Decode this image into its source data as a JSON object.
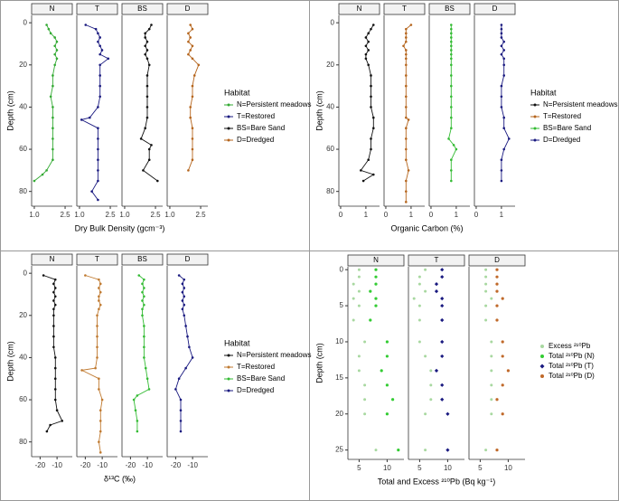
{
  "chart_data": [
    {
      "type": "line",
      "facets": [
        "N",
        "T",
        "BS",
        "D"
      ],
      "xlabel": "Dry Bulk Density (gcm⁻³)",
      "ylabel": "Depth (cm)",
      "xlim": [
        0.87,
        2.85
      ],
      "xticks": [
        {
          "value": 1,
          "label": "1.0"
        },
        {
          "value": 2.5,
          "label": "2.5"
        }
      ],
      "ylim": [
        -3.5,
        87
      ],
      "yticks": [
        0,
        20,
        40,
        60,
        80
      ],
      "yreverse": true,
      "legend_title": "Habitat",
      "series": [
        {
          "name": "N=Persistent meadows",
          "color": "#33aa33",
          "y": [
            1,
            3,
            5,
            7,
            9,
            11,
            13,
            15,
            17,
            20,
            25,
            30,
            35,
            40,
            45,
            50,
            55,
            60,
            65,
            70,
            72,
            75
          ],
          "x": [
            1.6,
            1.7,
            1.8,
            2.0,
            2.1,
            2.0,
            2.1,
            2.0,
            2.1,
            2.0,
            1.9,
            1.9,
            1.8,
            1.9,
            1.9,
            1.9,
            1.9,
            1.9,
            1.9,
            1.6,
            1.4,
            1.0
          ]
        },
        {
          "name": "T=Restored",
          "color": "#1a1a80",
          "y": [
            1,
            3,
            5,
            7,
            9,
            11,
            13,
            15,
            17,
            20,
            25,
            30,
            35,
            40,
            45,
            46,
            50,
            55,
            60,
            65,
            70,
            75,
            80,
            84
          ],
          "x": [
            1.3,
            1.8,
            1.9,
            2.0,
            1.9,
            2.0,
            2.1,
            2.0,
            2.4,
            2.0,
            2.0,
            2.0,
            2.0,
            1.9,
            1.5,
            1.1,
            1.9,
            1.9,
            1.9,
            1.9,
            1.9,
            1.9,
            1.6,
            1.9
          ]
        },
        {
          "name": "BS=Bare Sand",
          "color": "#111111",
          "y": [
            1,
            3,
            5,
            7,
            9,
            11,
            13,
            15,
            17,
            20,
            25,
            30,
            35,
            40,
            45,
            50,
            55,
            58,
            60,
            65,
            70,
            75
          ],
          "x": [
            2.3,
            2.2,
            2.0,
            2.0,
            2.1,
            2.0,
            2.1,
            2.0,
            2.1,
            2.2,
            2.1,
            2.1,
            2.1,
            2.1,
            2.1,
            2.0,
            1.8,
            2.3,
            2.2,
            2.2,
            1.9,
            2.6
          ]
        },
        {
          "name": "D=Dredged",
          "color": "#b5651d",
          "y": [
            1,
            3,
            5,
            7,
            9,
            11,
            13,
            15,
            17,
            20,
            25,
            30,
            35,
            40,
            45,
            50,
            55,
            60,
            65,
            70
          ],
          "x": [
            2.0,
            2.1,
            1.9,
            2.0,
            1.9,
            2.1,
            2.0,
            1.9,
            2.1,
            2.4,
            2.2,
            2.1,
            2.1,
            2.0,
            2.0,
            2.1,
            2.1,
            2.1,
            2.1,
            1.9
          ]
        }
      ]
    },
    {
      "type": "line",
      "facets": [
        "N",
        "T",
        "BS",
        "D"
      ],
      "xlabel": "Organic Carbon (%)",
      "ylabel": "Depth (cm)",
      "xlim": [
        -0.07,
        1.54
      ],
      "xticks": [
        0,
        1
      ],
      "ylim": [
        -3.5,
        87
      ],
      "yticks": [
        0,
        20,
        40,
        60,
        80
      ],
      "yreverse": true,
      "legend_title": "Habitat",
      "series": [
        {
          "name": "N=Persistent meadows",
          "color": "#111111",
          "y": [
            1,
            3,
            5,
            7,
            9,
            11,
            13,
            15,
            17,
            20,
            25,
            30,
            35,
            40,
            45,
            50,
            55,
            60,
            65,
            70,
            72,
            75
          ],
          "x": [
            1.3,
            1.2,
            1.1,
            1.0,
            1.1,
            1.0,
            1.1,
            1.0,
            1.0,
            1.1,
            1.2,
            1.2,
            1.2,
            1.2,
            1.3,
            1.3,
            1.2,
            1.2,
            1.1,
            0.8,
            1.3,
            0.9
          ]
        },
        {
          "name": "T=Restored",
          "color": "#b5651d",
          "y": [
            1,
            3,
            5,
            7,
            9,
            11,
            13,
            15,
            17,
            20,
            25,
            30,
            35,
            40,
            45,
            46,
            50,
            55,
            60,
            65,
            70,
            75,
            80,
            85
          ],
          "x": [
            1.0,
            0.8,
            0.8,
            0.8,
            0.8,
            0.7,
            0.8,
            0.8,
            0.8,
            0.8,
            0.8,
            0.8,
            0.8,
            0.8,
            0.8,
            0.9,
            0.8,
            0.8,
            0.8,
            0.8,
            0.9,
            0.8,
            0.8,
            0.8
          ]
        },
        {
          "name": "BS=Bare Sand",
          "color": "#33bb33",
          "y": [
            1,
            3,
            5,
            7,
            9,
            11,
            13,
            15,
            17,
            20,
            25,
            30,
            35,
            40,
            45,
            50,
            55,
            58,
            60,
            65,
            70,
            75
          ],
          "x": [
            0.8,
            0.8,
            0.8,
            0.8,
            0.8,
            0.8,
            0.8,
            0.8,
            0.8,
            0.8,
            0.8,
            0.8,
            0.8,
            0.8,
            0.8,
            0.8,
            0.7,
            0.9,
            1.0,
            0.8,
            0.8,
            0.8
          ]
        },
        {
          "name": "D=Dredged",
          "color": "#1a1a80",
          "y": [
            1,
            3,
            5,
            7,
            9,
            11,
            13,
            15,
            17,
            20,
            25,
            30,
            35,
            40,
            45,
            50,
            55,
            60,
            65,
            70,
            75
          ],
          "x": [
            1.0,
            1.0,
            1.0,
            1.0,
            1.1,
            1.0,
            1.1,
            1.0,
            1.1,
            1.1,
            1.1,
            1.0,
            1.0,
            1.0,
            1.1,
            1.1,
            1.3,
            1.1,
            1.0,
            1.0,
            1.0
          ]
        }
      ]
    },
    {
      "type": "line",
      "facets": [
        "N",
        "T",
        "BS",
        "D"
      ],
      "xlabel": "δ¹³C (‰)",
      "ylabel": "Depth (cm)",
      "xlim": [
        -25,
        -1
      ],
      "xticks": [
        -20,
        -10
      ],
      "ylim": [
        -3.5,
        87
      ],
      "yticks": [
        0,
        20,
        40,
        60,
        80
      ],
      "yreverse": true,
      "legend_title": "Habitat",
      "series": [
        {
          "name": "N=Persistent meadows",
          "color": "#111111",
          "y": [
            1,
            3,
            5,
            7,
            9,
            11,
            13,
            15,
            17,
            20,
            25,
            30,
            35,
            40,
            45,
            50,
            55,
            60,
            65,
            70,
            72,
            75
          ],
          "x": [
            -18,
            -11,
            -12,
            -11,
            -12,
            -11,
            -12,
            -11,
            -12,
            -12,
            -12,
            -12,
            -12,
            -11,
            -11,
            -11,
            -11,
            -11,
            -10,
            -7,
            -14,
            -16
          ]
        },
        {
          "name": "T=Restored",
          "color": "#c07a30",
          "y": [
            1,
            3,
            5,
            7,
            9,
            11,
            13,
            15,
            17,
            20,
            25,
            30,
            35,
            40,
            45,
            46,
            50,
            55,
            60,
            65,
            70,
            75,
            80,
            85
          ],
          "x": [
            -20,
            -12,
            -11,
            -12,
            -11,
            -12,
            -12,
            -11,
            -12,
            -13,
            -13,
            -13,
            -13,
            -13,
            -14,
            -22,
            -12,
            -12,
            -10,
            -11,
            -11,
            -11,
            -12,
            -11
          ]
        },
        {
          "name": "BS=Bare Sand",
          "color": "#33bb33",
          "y": [
            1,
            3,
            5,
            7,
            9,
            11,
            13,
            15,
            17,
            20,
            25,
            30,
            35,
            40,
            45,
            50,
            55,
            58,
            60,
            65,
            70,
            75
          ],
          "x": [
            -15,
            -12,
            -13,
            -12,
            -13,
            -12,
            -13,
            -12,
            -13,
            -13,
            -12,
            -12,
            -12,
            -12,
            -11,
            -10,
            -9,
            -16,
            -18,
            -17,
            -16,
            -16
          ]
        },
        {
          "name": "D=Dredged",
          "color": "#1a1a80",
          "y": [
            1,
            3,
            5,
            7,
            9,
            11,
            13,
            15,
            17,
            20,
            25,
            30,
            35,
            40,
            45,
            50,
            55,
            60,
            65,
            70,
            75
          ],
          "x": [
            -18,
            -15,
            -16,
            -15,
            -16,
            -15,
            -16,
            -15,
            -16,
            -15,
            -14,
            -13,
            -12,
            -10,
            -14,
            -18,
            -20,
            -17,
            -17,
            -17,
            -17
          ]
        }
      ]
    },
    {
      "type": "scatter",
      "xlabel": "Total and Excess ²¹⁰Pb (Bq kg⁻¹)",
      "ylabel": "Depth (cm)",
      "xlim": [
        3,
        13
      ],
      "xticks": [
        5,
        10
      ],
      "ylim": [
        -0.4,
        26.3
      ],
      "yticks": [
        0,
        5,
        10,
        15,
        20,
        25
      ],
      "yreverse": true,
      "depth": [
        0,
        1,
        2,
        3,
        4,
        5,
        7,
        10,
        12,
        14,
        16,
        18,
        20,
        25
      ],
      "series": [
        {
          "name": "Excess ²¹⁰Pb",
          "color": "#a8d8a0",
          "marker": "circle"
        },
        {
          "name": "Total ²¹⁰Pb (N)",
          "color": "#33cc33",
          "marker": "circle"
        },
        {
          "name": "Total ²¹⁰Pb (T)",
          "color": "#1a1a80",
          "marker": "diamond"
        },
        {
          "name": "Total ²¹⁰Pb (D)",
          "color": "#c0692a",
          "marker": "circle"
        }
      ],
      "facets": [
        {
          "label": "N",
          "excess": [
            5,
            5,
            4,
            5,
            4,
            5,
            4,
            6,
            5,
            5,
            6,
            6,
            6,
            8
          ],
          "total": [
            8,
            8,
            8,
            7,
            8,
            8,
            7,
            10,
            10,
            9,
            10,
            11,
            10,
            12
          ]
        },
        {
          "label": "T",
          "excess": [
            6,
            5,
            5,
            6,
            4,
            5,
            5,
            5,
            6,
            7,
            7,
            7,
            6,
            6
          ],
          "total": [
            9,
            9,
            8,
            8,
            9,
            9,
            9,
            9,
            9,
            8,
            9,
            9,
            10,
            10
          ]
        },
        {
          "label": "D",
          "excess": [
            6,
            6,
            6,
            6,
            7,
            6,
            6,
            7,
            7,
            7,
            7,
            7,
            7,
            6
          ],
          "total": [
            8,
            8,
            8,
            8,
            9,
            8,
            8,
            9,
            9,
            10,
            9,
            8,
            9,
            8
          ]
        }
      ]
    }
  ]
}
